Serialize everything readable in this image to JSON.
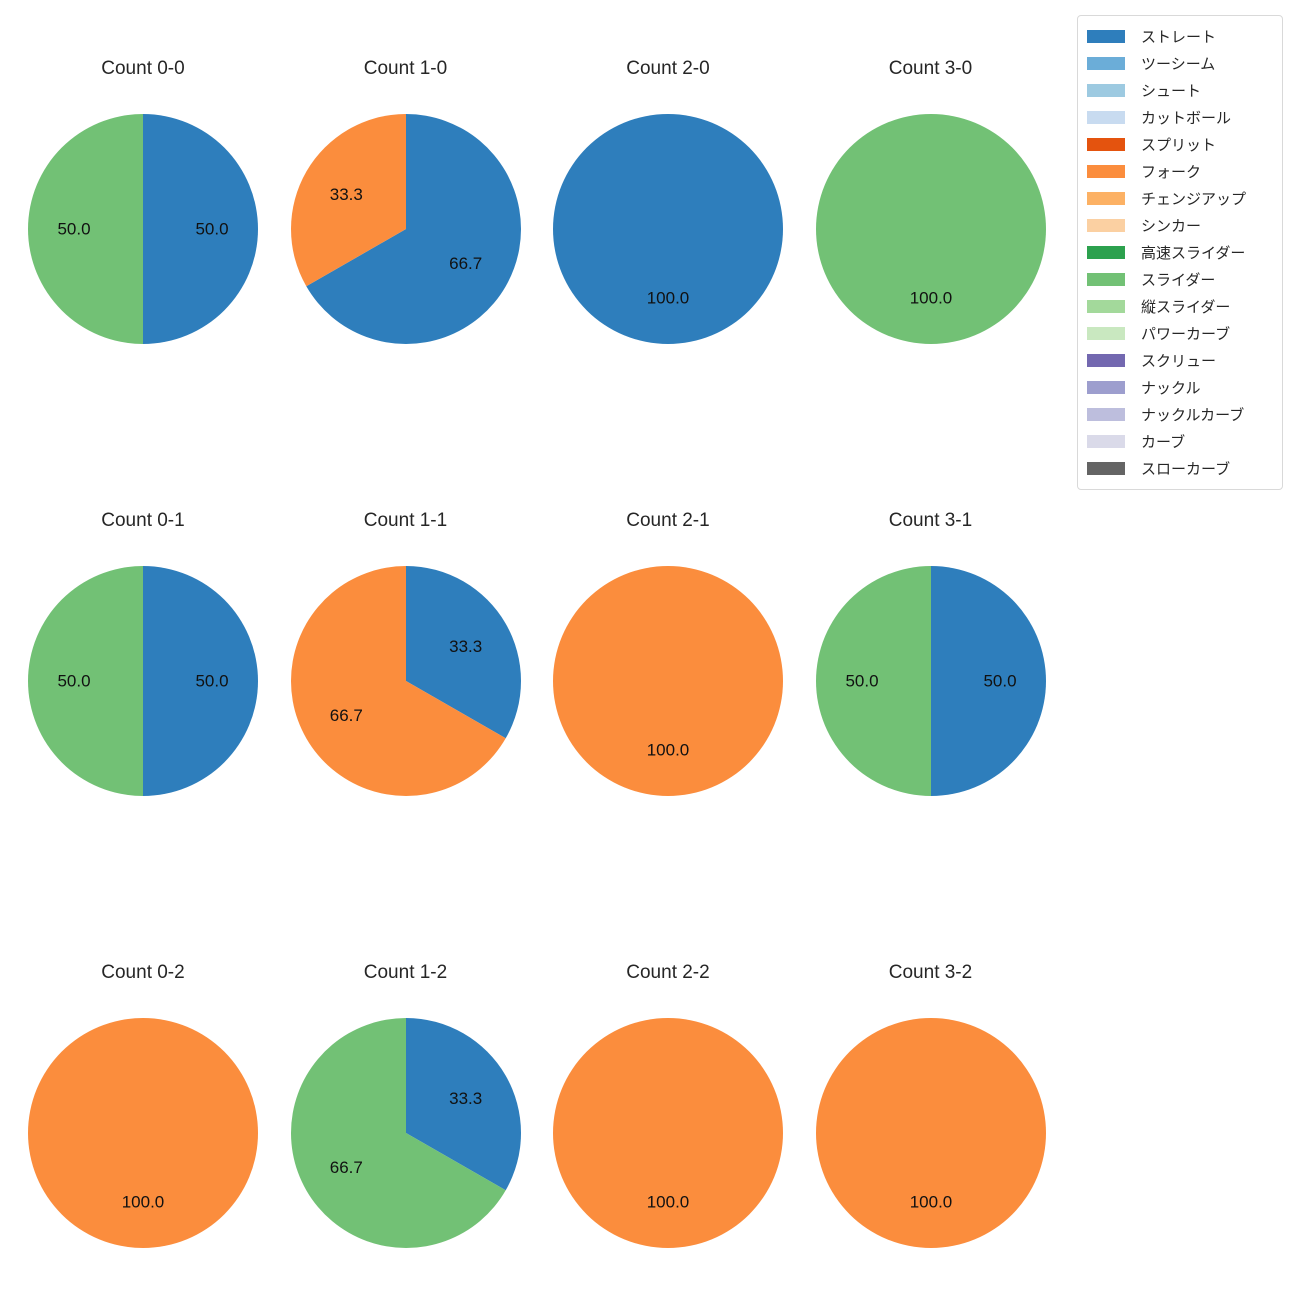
{
  "figure": {
    "background": "#ffffff",
    "title_color": "#262626",
    "pct_label_color": "#111111"
  },
  "legend": {
    "items": [
      {
        "label": "ストレート",
        "color": "#2e7ebc"
      },
      {
        "label": "ツーシーム",
        "color": "#6badd8"
      },
      {
        "label": "シュート",
        "color": "#9dcae1"
      },
      {
        "label": "カットボール",
        "color": "#c8dbf0"
      },
      {
        "label": "スプリット",
        "color": "#e4530e"
      },
      {
        "label": "フォーク",
        "color": "#fb8d3d"
      },
      {
        "label": "チェンジアップ",
        "color": "#fcb164"
      },
      {
        "label": "シンカー",
        "color": "#fbd0a2"
      },
      {
        "label": "高速スライダー",
        "color": "#2ca14e"
      },
      {
        "label": "スライダー",
        "color": "#72c175"
      },
      {
        "label": "縦スライダー",
        "color": "#a3d99b"
      },
      {
        "label": "パワーカーブ",
        "color": "#c9e8c0"
      },
      {
        "label": "スクリュー",
        "color": "#7368b0"
      },
      {
        "label": "ナックル",
        "color": "#9d9ece"
      },
      {
        "label": "ナックルカーブ",
        "color": "#bdbedd"
      },
      {
        "label": "カーブ",
        "color": "#dadae9"
      },
      {
        "label": "スローカーブ",
        "color": "#646464"
      }
    ]
  },
  "chart_data": {
    "type": "pie",
    "unit": "percent",
    "start_angle": "top",
    "direction": "clockwise",
    "pct_distance": 0.6,
    "charts": [
      {
        "title": "Count 0-0",
        "slices": [
          {
            "label": "ストレート",
            "value": 50.0,
            "display": "50.0",
            "color": "#2e7ebc"
          },
          {
            "label": "スライダー",
            "value": 50.0,
            "display": "50.0",
            "color": "#72c175"
          }
        ]
      },
      {
        "title": "Count 1-0",
        "slices": [
          {
            "label": "ストレート",
            "value": 66.7,
            "display": "66.7",
            "color": "#2e7ebc"
          },
          {
            "label": "フォーク",
            "value": 33.3,
            "display": "33.3",
            "color": "#fb8d3d"
          }
        ]
      },
      {
        "title": "Count 2-0",
        "slices": [
          {
            "label": "ストレート",
            "value": 100.0,
            "display": "100.0",
            "color": "#2e7ebc"
          }
        ]
      },
      {
        "title": "Count 3-0",
        "slices": [
          {
            "label": "スライダー",
            "value": 100.0,
            "display": "100.0",
            "color": "#72c175"
          }
        ]
      },
      {
        "title": "Count 0-1",
        "slices": [
          {
            "label": "ストレート",
            "value": 50.0,
            "display": "50.0",
            "color": "#2e7ebc"
          },
          {
            "label": "スライダー",
            "value": 50.0,
            "display": "50.0",
            "color": "#72c175"
          }
        ]
      },
      {
        "title": "Count 1-1",
        "slices": [
          {
            "label": "ストレート",
            "value": 33.3,
            "display": "33.3",
            "color": "#2e7ebc"
          },
          {
            "label": "フォーク",
            "value": 66.7,
            "display": "66.7",
            "color": "#fb8d3d"
          }
        ]
      },
      {
        "title": "Count 2-1",
        "slices": [
          {
            "label": "フォーク",
            "value": 100.0,
            "display": "100.0",
            "color": "#fb8d3d"
          }
        ]
      },
      {
        "title": "Count 3-1",
        "slices": [
          {
            "label": "ストレート",
            "value": 50.0,
            "display": "50.0",
            "color": "#2e7ebc"
          },
          {
            "label": "スライダー",
            "value": 50.0,
            "display": "50.0",
            "color": "#72c175"
          }
        ]
      },
      {
        "title": "Count 0-2",
        "slices": [
          {
            "label": "フォーク",
            "value": 100.0,
            "display": "100.0",
            "color": "#fb8d3d"
          }
        ]
      },
      {
        "title": "Count 1-2",
        "slices": [
          {
            "label": "ストレート",
            "value": 33.3,
            "display": "33.3",
            "color": "#2e7ebc"
          },
          {
            "label": "スライダー",
            "value": 66.7,
            "display": "66.7",
            "color": "#72c175"
          }
        ]
      },
      {
        "title": "Count 2-2",
        "slices": [
          {
            "label": "フォーク",
            "value": 100.0,
            "display": "100.0",
            "color": "#fb8d3d"
          }
        ]
      },
      {
        "title": "Count 3-2",
        "slices": [
          {
            "label": "フォーク",
            "value": 100.0,
            "display": "100.0",
            "color": "#fb8d3d"
          }
        ]
      }
    ]
  }
}
